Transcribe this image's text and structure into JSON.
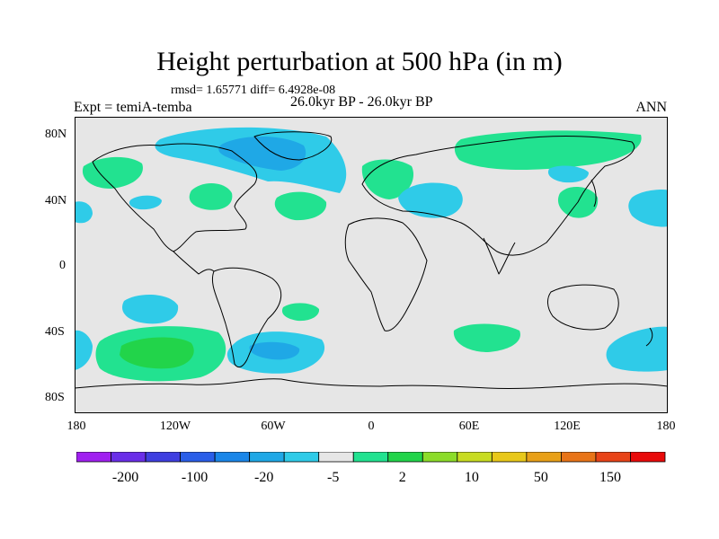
{
  "title": "Height perturbation at 500 hPa (in m)",
  "stats_line": "rmsd= 1.65771 diff= 6.4928e-08",
  "experiment_label": "Expt = temiA-temba",
  "period_label": "26.0kyr BP - 26.0kyr BP",
  "season_label": "ANN",
  "y_axis_labels": [
    "80N",
    "40N",
    "0",
    "40S",
    "80S"
  ],
  "x_axis_labels": [
    "180",
    "120W",
    "60W",
    "0",
    "60E",
    "120E",
    "180"
  ],
  "colorbar": {
    "labels": [
      "-200",
      "-100",
      "-20",
      "-5",
      "2",
      "10",
      "50",
      "150"
    ],
    "colors": [
      "#a020f0",
      "#6a2ee8",
      "#3f3fe0",
      "#2a5ee8",
      "#1a86e8",
      "#1fa8e6",
      "#2fcbe8",
      "#e6e6e6",
      "#22e290",
      "#22d44a",
      "#8cdc2a",
      "#c8dc22",
      "#e8c81a",
      "#e8a018",
      "#e87418",
      "#e84418",
      "#e80a0a"
    ]
  },
  "colors": {
    "background": "#e6e6e6",
    "positive_small": "#22e290",
    "positive_medium": "#22d44a",
    "negative_small": "#2fcbe8",
    "negative_medium": "#1fa8e6"
  }
}
